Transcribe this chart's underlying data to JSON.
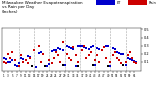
{
  "title": "Milwaukee Weather Evapotranspiration\nvs Rain per Day\n(Inches)",
  "title_fontsize": 3.0,
  "et_color": "#0000CC",
  "rain_color": "#CC0000",
  "background_color": "#FFFFFF",
  "legend_et": "ET",
  "legend_rain": "Rain",
  "ylim": [
    -0.02,
    0.52
  ],
  "ytick_vals": [
    0.1,
    0.2,
    0.3,
    0.4,
    0.5
  ],
  "vline_positions": [
    8,
    15,
    22,
    29,
    36,
    43,
    50,
    57
  ],
  "et_x": [
    1,
    2,
    3,
    4,
    5,
    6,
    7,
    8,
    9,
    10,
    11,
    12,
    13,
    14,
    16,
    17,
    18,
    19,
    21,
    22,
    23,
    24,
    25,
    26,
    27,
    28,
    29,
    30,
    31,
    32,
    33,
    34,
    35,
    36,
    37,
    38,
    39,
    40,
    41,
    42,
    43,
    44,
    45,
    46,
    47,
    48,
    49,
    50,
    51,
    52,
    53,
    54,
    55,
    56,
    57,
    58,
    59,
    60,
    61,
    62
  ],
  "et_y": [
    0.15,
    0.13,
    0.1,
    0.09,
    0.12,
    0.06,
    0.05,
    0.08,
    0.14,
    0.13,
    0.12,
    0.17,
    0.16,
    0.05,
    0.04,
    0.21,
    0.22,
    0.2,
    0.05,
    0.07,
    0.23,
    0.25,
    0.24,
    0.27,
    0.26,
    0.25,
    0.06,
    0.29,
    0.28,
    0.27,
    0.26,
    0.05,
    0.29,
    0.3,
    0.29,
    0.28,
    0.27,
    0.26,
    0.28,
    0.29,
    0.06,
    0.27,
    0.26,
    0.25,
    0.28,
    0.3,
    0.29,
    0.05,
    0.27,
    0.26,
    0.22,
    0.21,
    0.2,
    0.19,
    0.06,
    0.15,
    0.13,
    0.12,
    0.11,
    0.1
  ],
  "rain_x": [
    1,
    2,
    3,
    4,
    5,
    6,
    8,
    9,
    10,
    11,
    12,
    13,
    15,
    17,
    18,
    19,
    22,
    23,
    24,
    25,
    26,
    27,
    28,
    30,
    31,
    32,
    33,
    34,
    35,
    37,
    38,
    39,
    40,
    41,
    43,
    44,
    45,
    46,
    47,
    48,
    50,
    51,
    52,
    53,
    54,
    55,
    57,
    58,
    59,
    60,
    61,
    62
  ],
  "rain_y": [
    0.1,
    0.08,
    0.2,
    0.15,
    0.22,
    0.12,
    0.05,
    0.18,
    0.1,
    0.12,
    0.08,
    0.15,
    0.25,
    0.3,
    0.1,
    0.2,
    0.12,
    0.08,
    0.15,
    0.22,
    0.18,
    0.1,
    0.35,
    0.2,
    0.15,
    0.12,
    0.28,
    0.18,
    0.1,
    0.25,
    0.3,
    0.15,
    0.18,
    0.22,
    0.12,
    0.18,
    0.1,
    0.25,
    0.28,
    0.15,
    0.1,
    0.18,
    0.22,
    0.15,
    0.12,
    0.08,
    0.1,
    0.18,
    0.22,
    0.15,
    0.1,
    0.08
  ],
  "black_x": [
    14,
    20,
    28,
    35,
    42,
    49,
    56
  ],
  "black_y": [
    0.05,
    0.05,
    0.06,
    0.05,
    0.06,
    0.05,
    0.06
  ],
  "marker_size": 2.5,
  "figsize": [
    1.6,
    0.87
  ],
  "dpi": 100
}
